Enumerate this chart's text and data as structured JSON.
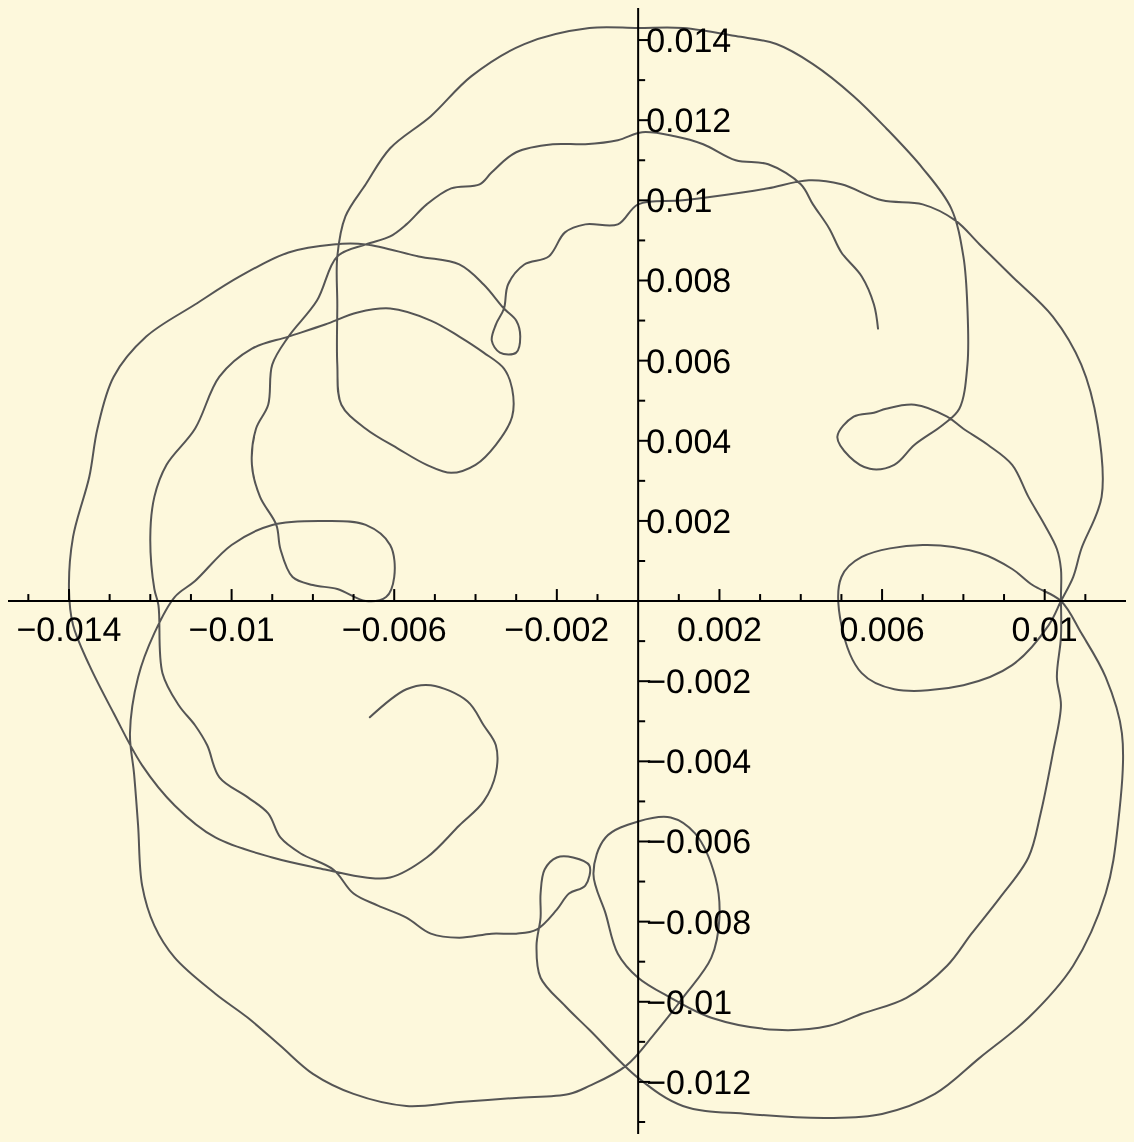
{
  "chart_data": {
    "type": "line",
    "xlim": [
      -0.0155,
      0.012
    ],
    "ylim": [
      -0.0133,
      0.0148
    ],
    "xticks": [
      {
        "value": -0.015,
        "label": null
      },
      {
        "value": -0.014,
        "label": "−0.014"
      },
      {
        "value": -0.013,
        "label": null
      },
      {
        "value": -0.012,
        "label": null
      },
      {
        "value": -0.011,
        "label": null
      },
      {
        "value": -0.01,
        "label": "−0.01"
      },
      {
        "value": -0.009,
        "label": null
      },
      {
        "value": -0.008,
        "label": null
      },
      {
        "value": -0.007,
        "label": null
      },
      {
        "value": -0.006,
        "label": "−0.006"
      },
      {
        "value": -0.005,
        "label": null
      },
      {
        "value": -0.004,
        "label": null
      },
      {
        "value": -0.003,
        "label": null
      },
      {
        "value": -0.002,
        "label": "−0.002"
      },
      {
        "value": -0.001,
        "label": null
      },
      {
        "value": 0.001,
        "label": null
      },
      {
        "value": 0.002,
        "label": "0.002"
      },
      {
        "value": 0.003,
        "label": null
      },
      {
        "value": 0.004,
        "label": null
      },
      {
        "value": 0.005,
        "label": null
      },
      {
        "value": 0.006,
        "label": "0.006"
      },
      {
        "value": 0.007,
        "label": null
      },
      {
        "value": 0.008,
        "label": null
      },
      {
        "value": 0.009,
        "label": null
      },
      {
        "value": 0.01,
        "label": "0.01"
      },
      {
        "value": 0.011,
        "label": null
      }
    ],
    "yticks": [
      {
        "value": -0.013,
        "label": null
      },
      {
        "value": -0.012,
        "label": "−0.012"
      },
      {
        "value": -0.011,
        "label": null
      },
      {
        "value": -0.01,
        "label": "−0.01"
      },
      {
        "value": -0.009,
        "label": null
      },
      {
        "value": -0.008,
        "label": "−0.008"
      },
      {
        "value": -0.007,
        "label": null
      },
      {
        "value": -0.006,
        "label": "−0.006"
      },
      {
        "value": -0.005,
        "label": null
      },
      {
        "value": -0.004,
        "label": "−0.004"
      },
      {
        "value": -0.003,
        "label": null
      },
      {
        "value": -0.002,
        "label": "−0.002"
      },
      {
        "value": -0.001,
        "label": null
      },
      {
        "value": 0.001,
        "label": null
      },
      {
        "value": 0.002,
        "label": "0.002"
      },
      {
        "value": 0.003,
        "label": null
      },
      {
        "value": 0.004,
        "label": "0.004"
      },
      {
        "value": 0.005,
        "label": null
      },
      {
        "value": 0.006,
        "label": "0.006"
      },
      {
        "value": 0.007,
        "label": null
      },
      {
        "value": 0.008,
        "label": "0.008"
      },
      {
        "value": 0.009,
        "label": null
      },
      {
        "value": 0.01,
        "label": "0.01"
      },
      {
        "value": 0.011,
        "label": null
      },
      {
        "value": 0.012,
        "label": "0.012"
      },
      {
        "value": 0.013,
        "label": null
      },
      {
        "value": 0.014,
        "label": "0.014"
      }
    ],
    "series": [
      {
        "color": "#555555",
        "x": [
          0.0059,
          0.0058,
          0.0055,
          0.005,
          0.0047,
          0.0043,
          0.004,
          0.0032,
          0.0024,
          0.0016,
          0.0009,
          0.0001,
          -0.0005,
          -0.0013,
          -0.0021,
          -0.003,
          -0.0036,
          -0.0039,
          -0.0046,
          -0.0052,
          -0.0057,
          -0.0061,
          -0.0067,
          -0.0074,
          -0.0079,
          -0.0086,
          -0.009,
          -0.0091,
          -0.0094,
          -0.0095,
          -0.0093,
          -0.0089,
          -0.0088,
          -0.0085,
          -0.008,
          -0.0074,
          -0.0067,
          -0.0062,
          -0.006,
          -0.0061,
          -0.0067,
          -0.0077,
          -0.009,
          -0.01,
          -0.0109,
          -0.0114,
          -0.0119,
          -0.0123,
          -0.0125,
          -0.0124,
          -0.0123,
          -0.0122,
          -0.0119,
          -0.0114,
          -0.0104,
          -0.0096,
          -0.0088,
          -0.008,
          -0.007,
          -0.0057,
          -0.0044,
          -0.003,
          -0.0017,
          -0.0012,
          -0.0003,
          0.0004,
          0.0011,
          0.0018,
          0.002,
          0.0019,
          0.0014,
          0.0008,
          0,
          -0.0008,
          -0.0011,
          -0.0008,
          -0.0005,
          0,
          0.0008,
          0.0018,
          0.0034,
          0.0047,
          0.0055,
          0.0066,
          0.0076,
          0.0082,
          0.0089,
          0.0096,
          0.0099,
          0.0102,
          0.0104,
          0.0103,
          0.0104,
          0.0104,
          0.0104,
          0.0103,
          0.01,
          0.0096,
          0.0092,
          0.0086,
          0.008,
          0.0076,
          0.0068,
          0.0061,
          0.0058,
          0.0053,
          0.0049,
          0.0052,
          0.0057,
          0.0063,
          0.0068,
          0.0075,
          0.0079,
          0.0081,
          0.0081,
          0.008,
          0.0077,
          0.007,
          0.0061,
          0.0053,
          0.0043,
          0.0034,
          0.0024,
          0.0011,
          0,
          -0.0012,
          -0.0028,
          -0.0041,
          -0.0051,
          -0.0061,
          -0.0067,
          -0.0072,
          -0.0074,
          -0.0074,
          -0.0074,
          -0.0073,
          -0.0067,
          -0.0059,
          -0.0052,
          -0.0046,
          -0.004,
          -0.0035,
          -0.0031,
          -0.0031,
          -0.0033,
          -0.0038,
          -0.0044,
          -0.0051,
          -0.0061,
          -0.0069,
          -0.0077,
          -0.0086,
          -0.0095,
          -0.0103,
          -0.0109,
          -0.0116,
          -0.0119,
          -0.012,
          -0.0119,
          -0.0118,
          -0.0117,
          -0.0113,
          -0.0109,
          -0.0106,
          -0.0103,
          -0.0096,
          -0.0091,
          -0.0088,
          -0.0083,
          -0.0075,
          -0.007,
          -0.0064,
          -0.0057,
          -0.0051,
          -0.0044,
          -0.0036,
          -0.003,
          -0.0025,
          -0.002,
          -0.0017,
          -0.0013,
          -0.0012,
          -0.0016,
          -0.002,
          -0.0023,
          -0.0024,
          -0.0024,
          -0.0025,
          -0.0024,
          -0.0018,
          -0.0012,
          0,
          0.0011,
          0.0027,
          0.0047,
          0.006,
          0.0073,
          0.0084,
          0.0096,
          0.0107,
          0.0115,
          0.0118,
          0.0119,
          0.0115,
          0.0109,
          0.0104,
          0.0097,
          0.0092,
          0.0084,
          0.007,
          0.0055,
          0.005,
          0.005,
          0.0055,
          0.0063,
          0.008,
          0.0092,
          0.0101,
          0.0104,
          0.0107,
          0.0109,
          0.0114,
          0.0113,
          0.0109,
          0.0102,
          0.0092,
          0.0084,
          0.0078,
          0.007,
          0.006,
          0.005,
          0.0042,
          0.0032,
          0.0026,
          0.0011,
          0,
          -0.0005,
          -0.0013,
          -0.0018,
          -0.0022,
          -0.0028,
          -0.0032,
          -0.0033,
          -0.0035,
          -0.0036,
          -0.0034,
          -0.003,
          -0.0029,
          -0.003,
          -0.0033,
          -0.0038,
          -0.0044,
          -0.0054,
          -0.0067,
          -0.0075,
          -0.0086,
          -0.0098,
          -0.0109,
          -0.0121,
          -0.0129,
          -0.0133,
          -0.0135,
          -0.0139,
          -0.014,
          -0.0139,
          -0.0135,
          -0.0129,
          -0.0122,
          -0.0114,
          -0.0104,
          -0.009,
          -0.0077,
          -0.0067,
          -0.0061,
          -0.0052,
          -0.0044,
          -0.0038,
          -0.0035,
          -0.0035,
          -0.0038,
          -0.0042,
          -0.0051,
          -0.0057,
          -0.0066
        ],
        "values": [
          0.0068,
          0.0074,
          0.0081,
          0.0087,
          0.0093,
          0.0099,
          0.0104,
          0.0109,
          0.011,
          0.0114,
          0.0116,
          0.0117,
          0.0115,
          0.0114,
          0.0114,
          0.0112,
          0.0107,
          0.0104,
          0.0103,
          0.0099,
          0.0094,
          0.0091,
          0.0089,
          0.0086,
          0.0075,
          0.0066,
          0.0059,
          0.0049,
          0.0043,
          0.0034,
          0.0026,
          0.0019,
          0.0013,
          0.0006,
          0.0004,
          0.0003,
          0,
          0.0001,
          0.0006,
          0.0014,
          0.0019,
          0.002,
          0.0019,
          0.0014,
          0.0005,
          0.0001,
          -0.0008,
          -0.0019,
          -0.0033,
          -0.0043,
          -0.0056,
          -0.0071,
          -0.0081,
          -0.0089,
          -0.0098,
          -0.0104,
          -0.0111,
          -0.0118,
          -0.0123,
          -0.0126,
          -0.0125,
          -0.0124,
          -0.0123,
          -0.0121,
          -0.0116,
          -0.0108,
          -0.0099,
          -0.0089,
          -0.0079,
          -0.0069,
          -0.0058,
          -0.0054,
          -0.0055,
          -0.0059,
          -0.0068,
          -0.0078,
          -0.0088,
          -0.0094,
          -0.0099,
          -0.0104,
          -0.0107,
          -0.0106,
          -0.0103,
          -0.0099,
          -0.0091,
          -0.0083,
          -0.0074,
          -0.0064,
          -0.0053,
          -0.0038,
          -0.0026,
          -0.0019,
          -0.0009,
          0.0001,
          0.0008,
          0.0013,
          0.0019,
          0.0026,
          0.0034,
          0.0039,
          0.0043,
          0.0046,
          0.0049,
          0.0048,
          0.0047,
          0.0046,
          0.0041,
          0.0036,
          0.0033,
          0.0034,
          0.0039,
          0.0044,
          0.0048,
          0.0059,
          0.0073,
          0.0086,
          0.0098,
          0.0108,
          0.0118,
          0.0126,
          0.0134,
          0.0139,
          0.0141,
          0.0143,
          0.0143,
          0.0143,
          0.0139,
          0.0131,
          0.0121,
          0.0113,
          0.0104,
          0.0096,
          0.0086,
          0.0074,
          0.0059,
          0.0049,
          0.0043,
          0.0038,
          0.0034,
          0.0032,
          0.0034,
          0.0039,
          0.0046,
          0.0053,
          0.0058,
          0.0062,
          0.0066,
          0.007,
          0.0073,
          0.0072,
          0.0069,
          0.0066,
          0.0063,
          0.0056,
          0.0043,
          0.0034,
          0.0026,
          0.0016,
          0.0003,
          -0.0001,
          -0.0018,
          -0.0026,
          -0.0031,
          -0.0036,
          -0.0044,
          -0.0049,
          -0.0053,
          -0.0059,
          -0.0063,
          -0.0067,
          -0.0073,
          -0.0076,
          -0.0079,
          -0.0083,
          -0.0084,
          -0.0083,
          -0.0083,
          -0.0082,
          -0.0077,
          -0.0073,
          -0.0071,
          -0.0066,
          -0.0064,
          -0.0064,
          -0.0067,
          -0.0073,
          -0.0079,
          -0.0086,
          -0.0094,
          -0.0101,
          -0.0107,
          -0.0119,
          -0.0126,
          -0.0128,
          -0.0129,
          -0.0128,
          -0.0123,
          -0.0114,
          -0.0104,
          -0.0091,
          -0.0073,
          -0.0056,
          -0.0033,
          -0.0019,
          -0.0008,
          0,
          0.0004,
          0.0008,
          0.0012,
          0.0014,
          0.0011,
          0.0006,
          -0.0006,
          -0.0018,
          -0.0022,
          -0.0021,
          -0.0016,
          -0.0006,
          0,
          0.0006,
          0.0013,
          0.0026,
          0.0044,
          0.0059,
          0.0071,
          0.0081,
          0.0089,
          0.0095,
          0.0099,
          0.01,
          0.0104,
          0.0105,
          0.0103,
          0.0102,
          0.01,
          0.0099,
          0.0094,
          0.0094,
          0.0092,
          0.0086,
          0.0084,
          0.0079,
          0.0073,
          0.0069,
          0.0065,
          0.0062,
          0.0062,
          0.0066,
          0.007,
          0.0073,
          0.0079,
          0.0084,
          0.0086,
          0.0089,
          0.0089,
          0.0087,
          0.0081,
          0.0074,
          0.0066,
          0.0056,
          0.0043,
          0.0031,
          0.0016,
          0.0003,
          -0.0006,
          -0.0016,
          -0.0028,
          -0.0041,
          -0.0051,
          -0.0059,
          -0.0064,
          -0.0067,
          -0.0069,
          -0.0069,
          -0.0064,
          -0.0056,
          -0.005,
          -0.0043,
          -0.0036,
          -0.0031,
          -0.0025,
          -0.0021,
          -0.0022,
          -0.0029
        ]
      }
    ]
  }
}
